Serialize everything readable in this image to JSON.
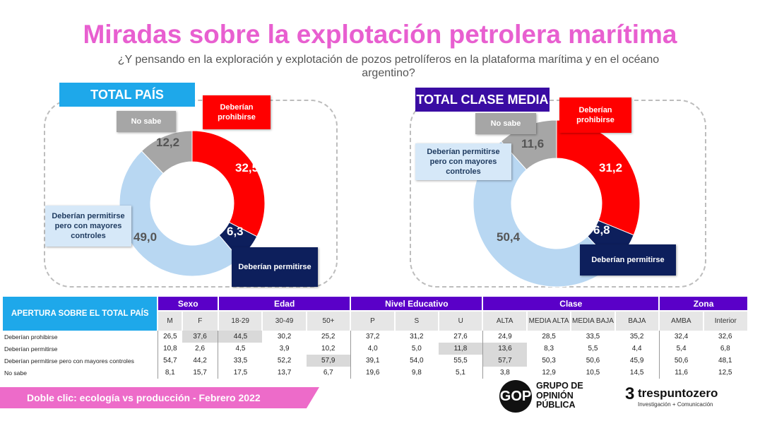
{
  "title": "Miradas sobre la explotación petrolera marítima",
  "subtitle": "¿Y pensando en la exploración y explotación de pozos petrolíferos en la plataforma marítima y en el océano argentino?",
  "colors": {
    "title": "#e85fd0",
    "prohibirse": "#ff0000",
    "permitirse": "#0d1f5c",
    "controles": "#b8d7f2",
    "no_sabe": "#a6a6a6",
    "total_pais_tag": "#1ea8ea",
    "clase_media_tag": "#3a0ca3",
    "table_header": "#5a00c8",
    "footer": "#ed6bc9"
  },
  "chart_data": [
    {
      "type": "pie",
      "title": "TOTAL PAÍS",
      "categories": [
        "Deberían prohibirse",
        "Deberían permitirse",
        "Deberían permitirse pero con mayores controles",
        "No sabe"
      ],
      "values": [
        32.5,
        6.3,
        49.0,
        12.2
      ],
      "labels": [
        "32,5",
        "6,3",
        "49,0",
        "12,2"
      ]
    },
    {
      "type": "pie",
      "title": "TOTAL CLASE MEDIA",
      "categories": [
        "Deberían prohibirse",
        "Deberían permitirse",
        "Deberían permitirse pero con mayores controles",
        "No sabe"
      ],
      "values": [
        31.2,
        6.8,
        50.4,
        11.6
      ],
      "labels": [
        "31,2",
        "6,8",
        "50,4",
        "11,6"
      ]
    }
  ],
  "callouts": {
    "prohibirse": "Deberían prohibirse",
    "permitirse": "Deberían permitirse",
    "controles": "Deberían permitirse pero con mayores controles",
    "no_sabe": "No sabe"
  },
  "table": {
    "header": "APERTURA SOBRE EL TOTAL PAÍS",
    "groups": [
      "Sexo",
      "Edad",
      "Nivel Educativo",
      "Clase",
      "Zona"
    ],
    "columns": [
      "M",
      "F",
      "18-29",
      "30-49",
      "50+",
      "P",
      "S",
      "U",
      "ALTA",
      "MEDIA ALTA",
      "MEDIA BAJA",
      "BAJA",
      "AMBA",
      "Interior"
    ],
    "rows": [
      {
        "label": "Deberían prohibirse",
        "values": [
          "26,5",
          "37,6",
          "44,5",
          "30,2",
          "25,2",
          "37,2",
          "31,2",
          "27,6",
          "24,9",
          "28,5",
          "33,5",
          "35,2",
          "32,4",
          "32,6"
        ],
        "highlight": [
          1,
          2
        ]
      },
      {
        "label": "Deberían permitirse",
        "values": [
          "10,8",
          "2,6",
          "4,5",
          "3,9",
          "10,2",
          "4,0",
          "5,0",
          "11,8",
          "13,6",
          "8,3",
          "5,5",
          "4,4",
          "5,4",
          "6,8"
        ],
        "highlight": [
          7,
          8
        ]
      },
      {
        "label": "Deberían permitirse pero con mayores controles",
        "values": [
          "54,7",
          "44,2",
          "33,5",
          "52,2",
          "57,9",
          "39,1",
          "54,0",
          "55,5",
          "57,7",
          "50,3",
          "50,6",
          "45,9",
          "50,6",
          "48,1"
        ],
        "highlight": [
          4,
          8
        ]
      },
      {
        "label": "No sabe",
        "values": [
          "8,1",
          "15,7",
          "17,5",
          "13,7",
          "6,7",
          "19,6",
          "9,8",
          "5,1",
          "3,8",
          "12,9",
          "10,5",
          "14,5",
          "11,6",
          "12,5"
        ],
        "highlight": []
      }
    ]
  },
  "footer": "Doble clic: ecología vs producción - Febrero 2022",
  "logos": {
    "gop_mark": "GOP",
    "gop_name": "GRUPO DE OPINIÓN PÚBLICA",
    "tpz_num": "3",
    "tpz_name": "trespuntozero",
    "tpz_tagline": "Investigación + Comunicación"
  }
}
